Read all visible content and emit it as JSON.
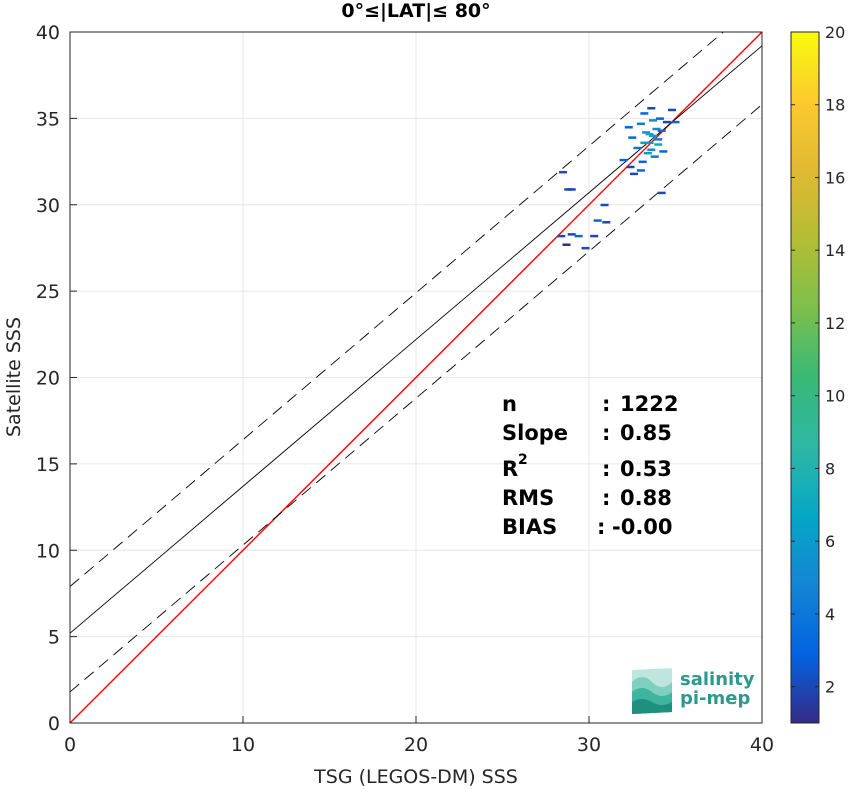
{
  "chart_data": {
    "type": "scatter",
    "title": "0°≤|LAT|≤ 80°",
    "xlabel": "TSG (LEGOS-DM) SSS",
    "ylabel": "Satellite SSS",
    "xlim": [
      0,
      40
    ],
    "ylim": [
      0,
      40
    ],
    "xticks": [
      "0",
      "10",
      "20",
      "30",
      "40"
    ],
    "yticks": [
      "0",
      "5",
      "10",
      "15",
      "20",
      "25",
      "30",
      "35",
      "40"
    ],
    "grid": true,
    "lines": [
      {
        "name": "1:1 line",
        "color": "#ff0000",
        "style": "solid",
        "intercept": 0,
        "slope": 1
      },
      {
        "name": "fit",
        "color": "#000000",
        "style": "solid",
        "intercept": 5.2,
        "slope": 0.85
      },
      {
        "name": "fit+",
        "color": "#000000",
        "style": "dashed",
        "intercept": 7.9,
        "slope": 0.85
      },
      {
        "name": "fit-",
        "color": "#000000",
        "style": "dashed",
        "intercept": 1.8,
        "slope": 0.85
      }
    ],
    "points": [
      {
        "x": 28.5,
        "y": 31.9,
        "c": 2
      },
      {
        "x": 28.8,
        "y": 30.9,
        "c": 2
      },
      {
        "x": 29.0,
        "y": 30.9,
        "c": 2
      },
      {
        "x": 28.4,
        "y": 28.2,
        "c": 2
      },
      {
        "x": 29.0,
        "y": 28.3,
        "c": 2
      },
      {
        "x": 29.4,
        "y": 28.2,
        "c": 3
      },
      {
        "x": 29.8,
        "y": 27.5,
        "c": 2
      },
      {
        "x": 28.7,
        "y": 27.7,
        "c": 1
      },
      {
        "x": 30.3,
        "y": 28.2,
        "c": 2
      },
      {
        "x": 30.5,
        "y": 29.1,
        "c": 3
      },
      {
        "x": 30.9,
        "y": 30.0,
        "c": 2
      },
      {
        "x": 31.0,
        "y": 29.0,
        "c": 2
      },
      {
        "x": 32.0,
        "y": 32.6,
        "c": 3
      },
      {
        "x": 32.4,
        "y": 32.2,
        "c": 2
      },
      {
        "x": 32.6,
        "y": 31.8,
        "c": 2
      },
      {
        "x": 32.8,
        "y": 33.3,
        "c": 4
      },
      {
        "x": 32.5,
        "y": 33.9,
        "c": 3
      },
      {
        "x": 33.0,
        "y": 34.7,
        "c": 4
      },
      {
        "x": 33.2,
        "y": 35.3,
        "c": 3
      },
      {
        "x": 33.3,
        "y": 34.2,
        "c": 5
      },
      {
        "x": 33.5,
        "y": 33.6,
        "c": 6
      },
      {
        "x": 33.6,
        "y": 33.2,
        "c": 5
      },
      {
        "x": 33.4,
        "y": 33.0,
        "c": 6
      },
      {
        "x": 33.7,
        "y": 34.0,
        "c": 6
      },
      {
        "x": 33.9,
        "y": 34.4,
        "c": 5
      },
      {
        "x": 34.0,
        "y": 33.8,
        "c": 4
      },
      {
        "x": 33.8,
        "y": 32.8,
        "c": 4
      },
      {
        "x": 33.1,
        "y": 32.5,
        "c": 3
      },
      {
        "x": 34.2,
        "y": 34.3,
        "c": 3
      },
      {
        "x": 34.3,
        "y": 33.1,
        "c": 3
      },
      {
        "x": 34.5,
        "y": 34.8,
        "c": 2
      },
      {
        "x": 34.8,
        "y": 35.5,
        "c": 2
      },
      {
        "x": 35.0,
        "y": 34.8,
        "c": 3
      },
      {
        "x": 34.1,
        "y": 35.0,
        "c": 3
      },
      {
        "x": 33.6,
        "y": 35.6,
        "c": 2
      },
      {
        "x": 34.2,
        "y": 30.7,
        "c": 2
      },
      {
        "x": 33.0,
        "y": 32.0,
        "c": 3
      },
      {
        "x": 32.3,
        "y": 34.5,
        "c": 3
      },
      {
        "x": 33.7,
        "y": 34.9,
        "c": 5
      },
      {
        "x": 34.0,
        "y": 33.5,
        "c": 7
      },
      {
        "x": 33.5,
        "y": 34.1,
        "c": 7
      },
      {
        "x": 33.2,
        "y": 33.6,
        "c": 6
      }
    ],
    "colorbar": {
      "min": 1,
      "max": 20,
      "ticks": [
        "2",
        "4",
        "6",
        "8",
        "10",
        "12",
        "14",
        "16",
        "18",
        "20"
      ],
      "colormap": "parula"
    },
    "stats": {
      "n": "1222",
      "slope": "0.85",
      "r2": "0.53",
      "rms": "0.88",
      "bias": "-0.00"
    }
  },
  "stats_labels": {
    "n": "n",
    "slope": "Slope",
    "r2_base": "R",
    "r2_sup": "2",
    "rms": "RMS",
    "bias": "BIAS",
    "sep": ":"
  },
  "logo": {
    "line1": "salinity",
    "line2": "pi-mep"
  }
}
